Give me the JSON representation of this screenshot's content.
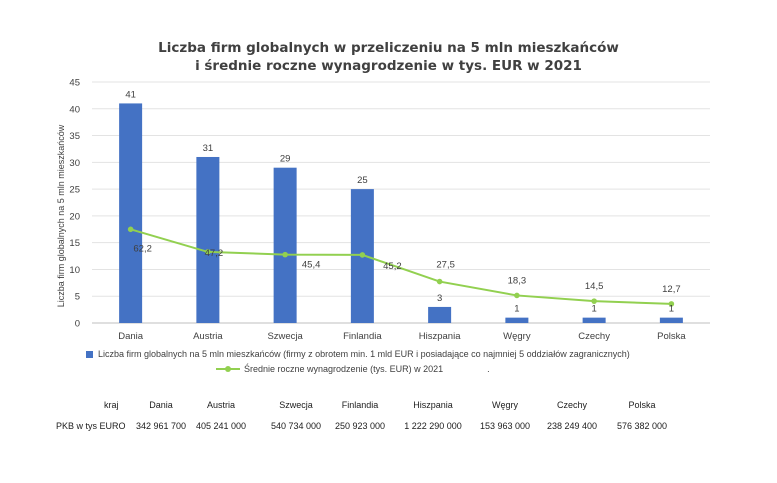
{
  "chart_data": {
    "type": "bar",
    "title_line1": "Liczba firm globalnych w przeliczeniu na 5 mln mieszkańców",
    "title_line2": "i średnie roczne wynagrodzenie w tys. EUR w 2021",
    "ylabel": "Liczba firm globalnych na 5 mln mieszkańców",
    "ylim": [
      0,
      45
    ],
    "yticks": [
      0,
      5,
      10,
      15,
      20,
      25,
      30,
      35,
      40,
      45
    ],
    "grid": true,
    "categories": [
      "Dania",
      "Austria",
      "Szwecja",
      "Finlandia",
      "Hiszpania",
      "Węgry",
      "Czechy",
      "Polska"
    ],
    "series": [
      {
        "name": "Liczba firm globalnych na 5 mln mieszkańców (firmy z obrotem min. 1 mld EUR i posiadające co najmniej 5 oddziałów zagranicznych)",
        "type": "bar",
        "values": [
          41,
          31,
          29,
          25,
          3,
          1,
          1,
          1
        ],
        "labels": [
          "41",
          "31",
          "29",
          "25",
          "3",
          "1",
          "1",
          "1"
        ],
        "color": "#4472c4"
      },
      {
        "name": "Średnie roczne wynagrodzenie (tys. EUR) w 2021",
        "type": "line",
        "values": [
          62.2,
          47.2,
          45.4,
          45.2,
          27.5,
          18.3,
          14.5,
          12.7
        ],
        "labels": [
          "62,2",
          "47,2",
          "45,4",
          "45,2",
          "27,5",
          "18,3",
          "14,5",
          "12,7"
        ],
        "color": "#92d050"
      }
    ],
    "legend_position": "bottom",
    "legend_trailing_mark": "."
  },
  "table": {
    "row1_label": "kraj",
    "row2_label": "PKB w tys EURO",
    "countries": [
      "Dania",
      "Austria",
      "Szwecja",
      "Finlandia",
      "Hiszpania",
      "Węgry",
      "Czechy",
      "Polska"
    ],
    "pkb": [
      "342 961 700",
      "405 241 000",
      "540 734 000",
      "250 923 000",
      "1 222 290 000",
      "153 963 000",
      "238 249 400",
      "576 382 000"
    ]
  }
}
